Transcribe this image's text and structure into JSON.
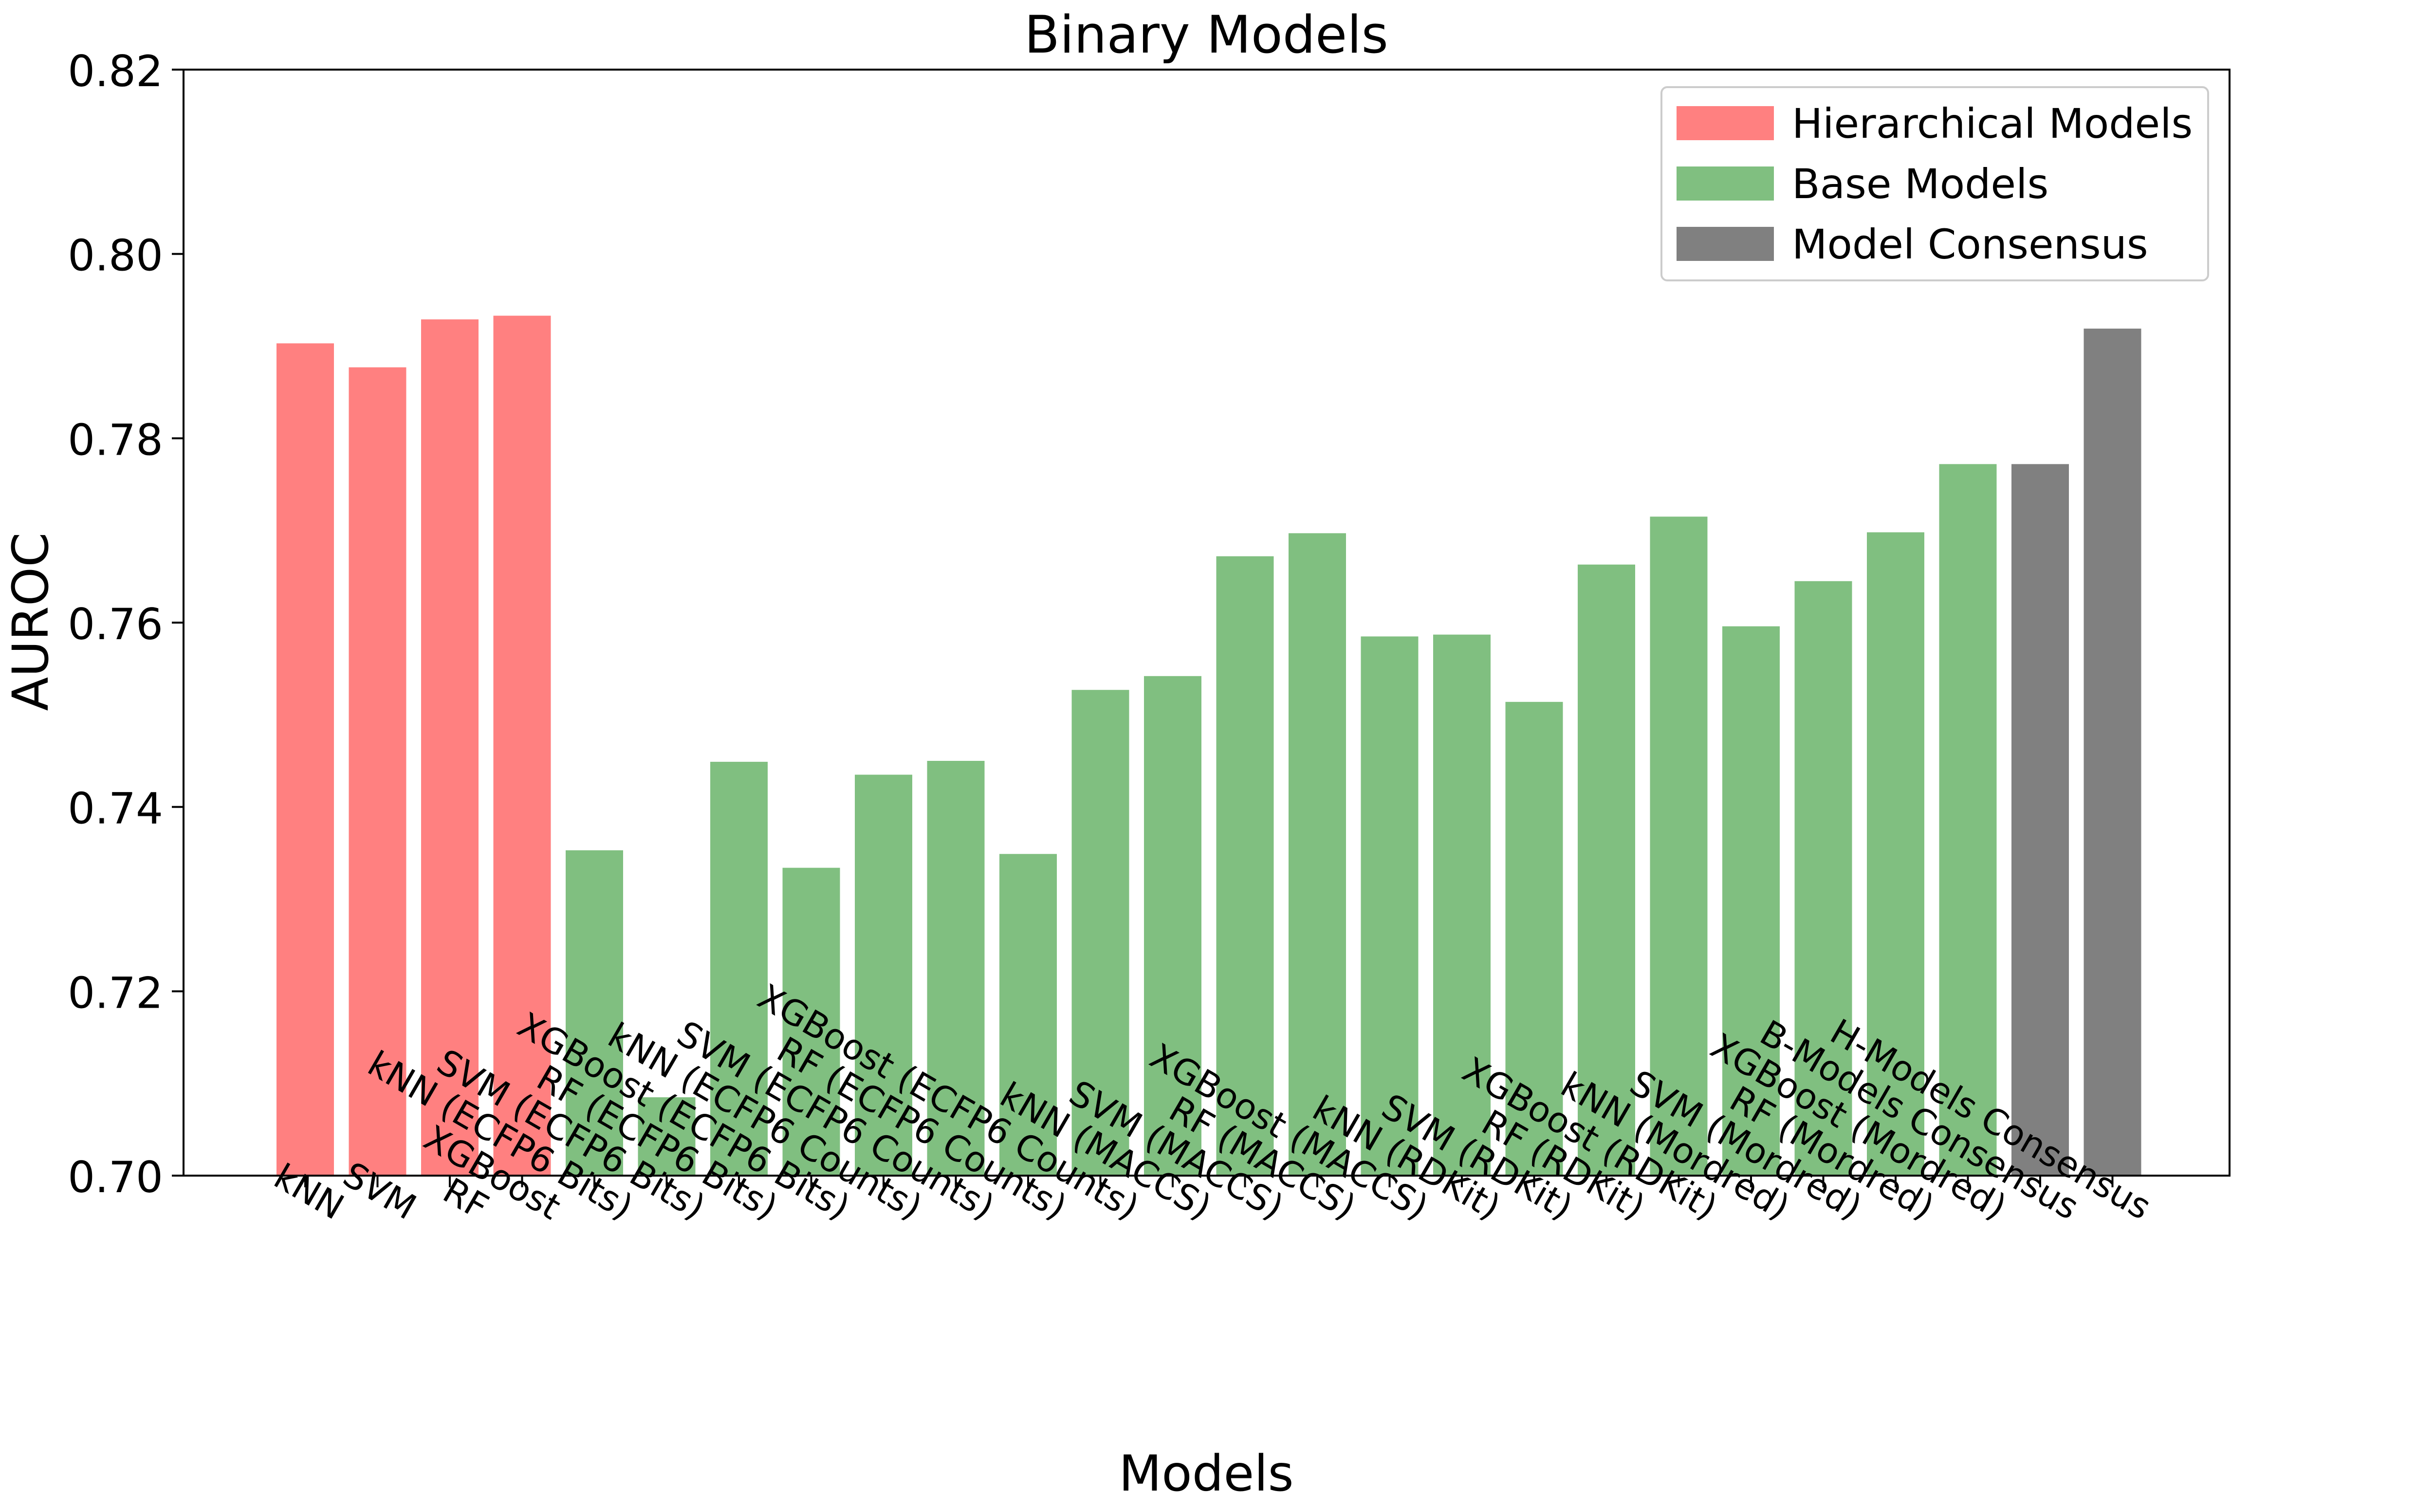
{
  "chart_data": {
    "type": "bar",
    "title": "Binary Models",
    "xlabel": "Models",
    "ylabel": "AUROC",
    "ylim": [
      0.7,
      0.82
    ],
    "yticks": [
      "0.70",
      "0.72",
      "0.74",
      "0.76",
      "0.78",
      "0.80",
      "0.82"
    ],
    "grid": false,
    "legend_position": "top-right",
    "groups": [
      {
        "name": "Hierarchical Models",
        "color": "#ff8080"
      },
      {
        "name": "Base Models",
        "color": "#80bf80"
      },
      {
        "name": "Model Consensus",
        "color": "#808080"
      }
    ],
    "bars": [
      {
        "label": "kNN",
        "value": 0.7903,
        "group": 0
      },
      {
        "label": "SVM",
        "value": 0.7877,
        "group": 0
      },
      {
        "label": "RF",
        "value": 0.7929,
        "group": 0
      },
      {
        "label": "XGBoost",
        "value": 0.7933,
        "group": 0
      },
      {
        "label": "kNN (ECFP6 Bits)",
        "value": 0.7353,
        "group": 1
      },
      {
        "label": "SVM (ECFP6 Bits)",
        "value": 0.7085,
        "group": 1
      },
      {
        "label": "RF (ECFP6 Bits)",
        "value": 0.7449,
        "group": 1
      },
      {
        "label": "XGBoost (ECFP6 Bits)",
        "value": 0.7334,
        "group": 1
      },
      {
        "label": "kNN (ECFP6 Counts)",
        "value": 0.7435,
        "group": 1
      },
      {
        "label": "SVM (ECFP6 Counts)",
        "value": 0.745,
        "group": 1
      },
      {
        "label": "RF (ECFP6 Counts)",
        "value": 0.7349,
        "group": 1
      },
      {
        "label": "XGBoost (ECFP6 Counts)",
        "value": 0.7527,
        "group": 1
      },
      {
        "label": "kNN (MACCS)",
        "value": 0.7542,
        "group": 1
      },
      {
        "label": "SVM (MACCS)",
        "value": 0.7672,
        "group": 1
      },
      {
        "label": "RF (MACCS)",
        "value": 0.7697,
        "group": 1
      },
      {
        "label": "XGBoost (MACCS)",
        "value": 0.7585,
        "group": 1
      },
      {
        "label": "kNN (RDKit)",
        "value": 0.7587,
        "group": 1
      },
      {
        "label": "SVM (RDKit)",
        "value": 0.7514,
        "group": 1
      },
      {
        "label": "RF (RDKit)",
        "value": 0.7663,
        "group": 1
      },
      {
        "label": "XGBoost (RDKit)",
        "value": 0.7715,
        "group": 1
      },
      {
        "label": "kNN (Mordred)",
        "value": 0.7596,
        "group": 1
      },
      {
        "label": "SVM (Mordred)",
        "value": 0.7645,
        "group": 1
      },
      {
        "label": "RF (Mordred)",
        "value": 0.7698,
        "group": 1
      },
      {
        "label": "XGBoost (Mordred)",
        "value": 0.7772,
        "group": 1
      },
      {
        "label": "B-Models Consensus",
        "value": 0.7772,
        "group": 2
      },
      {
        "label": "H-Models Consensus",
        "value": 0.7919,
        "group": 2
      }
    ]
  }
}
